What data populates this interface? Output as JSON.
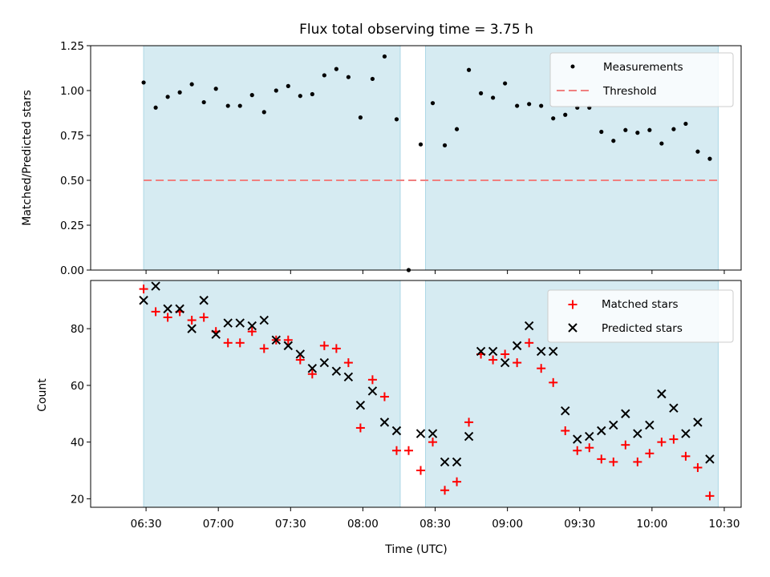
{
  "colors": {
    "band": "#add8e6",
    "measurement": "#000000",
    "threshold": "#f08080",
    "matched": "#ff0000",
    "predicted": "#000000"
  },
  "chart_data": [
    {
      "type": "scatter",
      "title": "Flux total observing time = 3.75 h",
      "xlabel": "",
      "ylabel": "Matched/Predicted stars",
      "xlim": [
        367,
        637
      ],
      "ylim": [
        0,
        1.25
      ],
      "xticks": [
        {
          "value": 390,
          "label": "06:30"
        },
        {
          "value": 420,
          "label": "07:00"
        },
        {
          "value": 450,
          "label": "07:30"
        },
        {
          "value": 480,
          "label": "08:00"
        },
        {
          "value": 510,
          "label": "08:30"
        },
        {
          "value": 540,
          "label": "09:00"
        },
        {
          "value": 570,
          "label": "09:30"
        },
        {
          "value": 600,
          "label": "10:00"
        },
        {
          "value": 630,
          "label": "10:30"
        }
      ],
      "yticks": [
        {
          "value": 0,
          "label": "0.00"
        },
        {
          "value": 0.25,
          "label": "0.25"
        },
        {
          "value": 0.5,
          "label": "0.50"
        },
        {
          "value": 0.75,
          "label": "0.75"
        },
        {
          "value": 1.0,
          "label": "1.00"
        },
        {
          "value": 1.25,
          "label": "1.25"
        }
      ],
      "observing_windows": [
        [
          389,
          495.5
        ],
        [
          506,
          627.5
        ]
      ],
      "threshold": {
        "value": 0.5,
        "from": 389,
        "to": 627.5,
        "label": "Threshold"
      },
      "series": [
        {
          "name": "Measurements",
          "x": [
            389,
            394,
            399,
            404,
            409,
            414,
            419,
            424,
            429,
            434,
            439,
            444,
            449,
            454,
            459,
            464,
            469,
            474,
            479,
            484,
            489,
            494,
            499,
            504,
            509,
            514,
            519,
            524,
            529,
            534,
            539,
            544,
            549,
            554,
            559,
            564,
            569,
            574,
            579,
            584,
            589,
            594,
            599,
            604,
            609,
            614,
            619,
            624
          ],
          "values": [
            1.045,
            0.905,
            0.965,
            0.99,
            1.035,
            0.935,
            1.01,
            0.915,
            0.915,
            0.975,
            0.88,
            1.0,
            1.025,
            0.97,
            0.98,
            1.085,
            1.12,
            1.075,
            0.85,
            1.065,
            1.19,
            0.84,
            0.0,
            0.7,
            0.93,
            0.695,
            0.785,
            1.115,
            0.985,
            0.96,
            1.04,
            0.915,
            0.925,
            0.915,
            0.845,
            0.865,
            0.905,
            0.905,
            0.77,
            0.72,
            0.78,
            0.765,
            0.78,
            0.705,
            0.785,
            0.815,
            0.66,
            0.62
          ]
        }
      ]
    },
    {
      "type": "scatter",
      "title": "",
      "xlabel": "Time (UTC)",
      "ylabel": "Count",
      "xlim": [
        367,
        637
      ],
      "ylim": [
        17,
        97
      ],
      "xticks": [
        {
          "value": 390,
          "label": "06:30"
        },
        {
          "value": 420,
          "label": "07:00"
        },
        {
          "value": 450,
          "label": "07:30"
        },
        {
          "value": 480,
          "label": "08:00"
        },
        {
          "value": 510,
          "label": "08:30"
        },
        {
          "value": 540,
          "label": "09:00"
        },
        {
          "value": 570,
          "label": "09:30"
        },
        {
          "value": 600,
          "label": "10:00"
        },
        {
          "value": 630,
          "label": "10:30"
        }
      ],
      "yticks": [
        {
          "value": 20,
          "label": "20"
        },
        {
          "value": 40,
          "label": "40"
        },
        {
          "value": 60,
          "label": "60"
        },
        {
          "value": 80,
          "label": "80"
        }
      ],
      "observing_windows": [
        [
          389,
          495.5
        ],
        [
          506,
          627.5
        ]
      ],
      "series": [
        {
          "name": "Matched stars",
          "marker": "plus",
          "x": [
            389,
            394,
            399,
            404,
            409,
            414,
            419,
            424,
            429,
            434,
            439,
            444,
            449,
            454,
            459,
            464,
            469,
            474,
            479,
            484,
            489,
            494,
            499,
            504,
            509,
            514,
            519,
            524,
            529,
            534,
            539,
            544,
            549,
            554,
            559,
            564,
            569,
            574,
            579,
            584,
            589,
            594,
            599,
            604,
            609,
            614,
            619,
            624
          ],
          "values": [
            94,
            86,
            84,
            86,
            83,
            84,
            79,
            75,
            75,
            79,
            73,
            76,
            76,
            69,
            64,
            74,
            73,
            68,
            45,
            62,
            56,
            37,
            37,
            30,
            40,
            23,
            26,
            47,
            71,
            69,
            71,
            68,
            75,
            66,
            61,
            44,
            37,
            38,
            34,
            33,
            39,
            33,
            36,
            40,
            41,
            35,
            31,
            21
          ]
        },
        {
          "name": "Predicted stars",
          "marker": "x",
          "x": [
            389,
            394,
            399,
            404,
            409,
            414,
            419,
            424,
            429,
            434,
            439,
            444,
            449,
            454,
            459,
            464,
            469,
            474,
            479,
            484,
            489,
            494,
            504,
            509,
            514,
            519,
            524,
            529,
            534,
            539,
            544,
            549,
            554,
            559,
            564,
            569,
            574,
            579,
            584,
            589,
            594,
            599,
            604,
            609,
            614,
            619,
            624
          ],
          "values": [
            90,
            95,
            87,
            87,
            80,
            90,
            78,
            82,
            82,
            81,
            83,
            76,
            74,
            71,
            66,
            68,
            65,
            63,
            53,
            58,
            47,
            44,
            43,
            43,
            33,
            33,
            42,
            72,
            72,
            68,
            74,
            81,
            72,
            72,
            51,
            41,
            42,
            44,
            46,
            50,
            43,
            46,
            57,
            52,
            43,
            47,
            34
          ]
        }
      ]
    }
  ]
}
